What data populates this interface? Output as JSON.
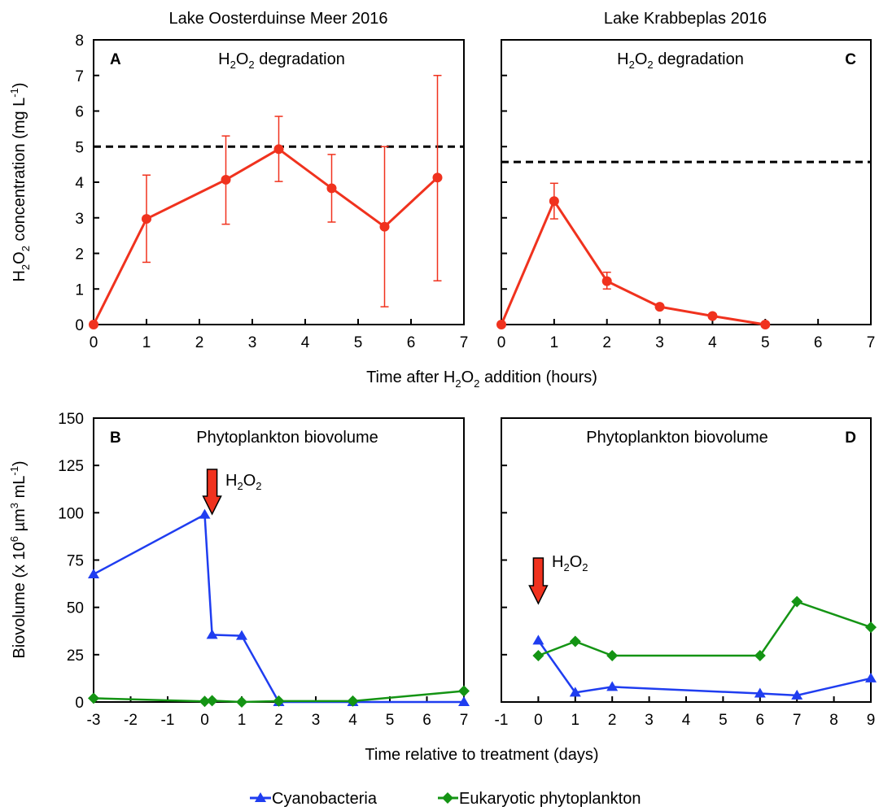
{
  "panel_titles": {
    "left": "Lake Oosterduinse Meer 2016",
    "right": "Lake Krabbeplas 2016"
  },
  "top_xlabel": {
    "a": "Time after H",
    "sub1": "2",
    "b": "O",
    "sub2": "2",
    "c": " addition (hours)"
  },
  "top_ylabel": {
    "a": "H",
    "sub1": "2",
    "b": "O",
    "sub2": "2",
    "c": " concentration (mg L",
    "sup": "-1",
    "d": ")"
  },
  "bottom_xlabel": "Time relative to treatment (days)",
  "bottom_ylabel": {
    "a": "Biovolume (x 10",
    "sup1": "6",
    "b": " µm",
    "sup2": "3",
    "c": " mL",
    "sup3": "-1",
    "d": ")"
  },
  "h2o2_annotation": {
    "a": "H",
    "sub1": "2",
    "b": "O",
    "sub2": "2"
  },
  "legend": [
    {
      "name": "Cyanobacteria",
      "color": "#1f3df0",
      "marker": "triangle"
    },
    {
      "name": "Eukaryotic phytoplankton",
      "color": "#149414",
      "marker": "diamond"
    }
  ],
  "colors": {
    "degradation": "#f0321e",
    "arrow": "#f0321e",
    "threshold": "#000000"
  },
  "chart_data": [
    {
      "id": "A",
      "panel_label": "A",
      "type": "line",
      "title_parts": {
        "a": "H",
        "sub1": "2",
        "b": "O",
        "sub2": "2",
        "c": " degradation"
      },
      "xlim": [
        0,
        7
      ],
      "ylim": [
        0,
        8
      ],
      "xticks": [
        "0",
        "1",
        "2",
        "3",
        "4",
        "5",
        "6",
        "7"
      ],
      "yticks": [
        "0",
        "1",
        "2",
        "3",
        "4",
        "5",
        "6",
        "7",
        "8"
      ],
      "x": [
        0,
        1,
        2.5,
        3.5,
        4.5,
        5.5,
        6.5
      ],
      "y": [
        0,
        2.97,
        4.07,
        4.93,
        3.83,
        2.75,
        4.13
      ],
      "err_low": [
        0,
        1.75,
        2.82,
        4.02,
        2.88,
        0.5,
        1.23
      ],
      "err_high": [
        0,
        4.2,
        5.3,
        5.85,
        4.78,
        5.0,
        7.0
      ],
      "reference_line_y": 5.0,
      "grid": false
    },
    {
      "id": "C",
      "panel_label": "C",
      "type": "line",
      "title_parts": {
        "a": "H",
        "sub1": "2",
        "b": "O",
        "sub2": "2",
        "c": " degradation"
      },
      "xlim": [
        0,
        7
      ],
      "ylim": [
        0,
        8
      ],
      "xticks": [
        "0",
        "1",
        "2",
        "3",
        "4",
        "5",
        "6",
        "7"
      ],
      "x": [
        0,
        1,
        2,
        3,
        4,
        5
      ],
      "y": [
        0,
        3.47,
        1.22,
        0.5,
        0.24,
        0
      ],
      "err_low": [
        0,
        2.97,
        1.0,
        0.5,
        0.24,
        0
      ],
      "err_high": [
        0,
        3.97,
        1.47,
        0.5,
        0.24,
        0
      ],
      "reference_line_y": 4.57,
      "grid": false
    },
    {
      "id": "B",
      "panel_label": "B",
      "type": "line",
      "title": "Phytoplankton biovolume",
      "xlim": [
        -3,
        7
      ],
      "ylim": [
        0,
        150
      ],
      "xticks": [
        "-3",
        "-2",
        "-1",
        "0",
        "1",
        "2",
        "3",
        "4",
        "5",
        "6",
        "7"
      ],
      "yticks": [
        "0",
        "25",
        "50",
        "75",
        "100",
        "125",
        "150"
      ],
      "treatment_day": 0.2,
      "series": [
        {
          "name": "Cyanobacteria",
          "x": [
            -3,
            0,
            0.2,
            1,
            2,
            4,
            7
          ],
          "y": [
            67.5,
            99,
            35.5,
            35,
            0,
            0,
            0
          ]
        },
        {
          "name": "Eukaryotic phytoplankton",
          "x": [
            -3,
            0,
            0.2,
            1,
            2,
            4,
            7
          ],
          "y": [
            2,
            0.3,
            0.7,
            0,
            0.5,
            0.5,
            5.8
          ]
        }
      ],
      "grid": false
    },
    {
      "id": "D",
      "panel_label": "D",
      "type": "line",
      "title": "Phytoplankton biovolume",
      "xlim": [
        -1,
        9
      ],
      "ylim": [
        0,
        150
      ],
      "xticks": [
        "-1",
        "0",
        "1",
        "2",
        "3",
        "4",
        "5",
        "6",
        "7",
        "8",
        "9"
      ],
      "treatment_day": 0,
      "series": [
        {
          "name": "Cyanobacteria",
          "x": [
            0,
            1,
            2,
            6,
            7,
            9
          ],
          "y": [
            32.5,
            5,
            8,
            4.5,
            3.5,
            12.5
          ]
        },
        {
          "name": "Eukaryotic phytoplankton",
          "x": [
            0,
            1,
            2,
            6,
            7,
            9
          ],
          "y": [
            24.5,
            32,
            24.5,
            24.5,
            53,
            39.5
          ]
        }
      ],
      "grid": false
    }
  ]
}
